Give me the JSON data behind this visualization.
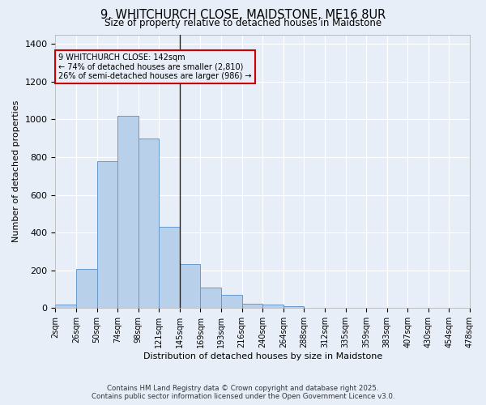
{
  "title": "9, WHITCHURCH CLOSE, MAIDSTONE, ME16 8UR",
  "subtitle": "Size of property relative to detached houses in Maidstone",
  "xlabel": "Distribution of detached houses by size in Maidstone",
  "ylabel": "Number of detached properties",
  "categories": [
    "2sqm",
    "26sqm",
    "50sqm",
    "74sqm",
    "98sqm",
    "121sqm",
    "145sqm",
    "169sqm",
    "193sqm",
    "216sqm",
    "240sqm",
    "264sqm",
    "288sqm",
    "312sqm",
    "335sqm",
    "359sqm",
    "383sqm",
    "407sqm",
    "430sqm",
    "454sqm",
    "478sqm"
  ],
  "bar_heights": [
    20,
    210,
    780,
    1020,
    900,
    430,
    235,
    110,
    70,
    25,
    18,
    10,
    0,
    0,
    0,
    0,
    0,
    0,
    0,
    0
  ],
  "bar_color": "#b8d0ea",
  "bar_edge_color": "#6699cc",
  "bg_color": "#e8eef8",
  "grid_color": "#ffffff",
  "annotation_box_color": "#cc0000",
  "marker_bin": 5,
  "annotation_text_line1": "9 WHITCHURCH CLOSE: 142sqm",
  "annotation_text_line2": "← 74% of detached houses are smaller (2,810)",
  "annotation_text_line3": "26% of semi-detached houses are larger (986) →",
  "footer_line1": "Contains HM Land Registry data © Crown copyright and database right 2025.",
  "footer_line2": "Contains public sector information licensed under the Open Government Licence v3.0.",
  "ylim": [
    0,
    1450
  ],
  "yticks": [
    0,
    200,
    400,
    600,
    800,
    1000,
    1200,
    1400
  ]
}
